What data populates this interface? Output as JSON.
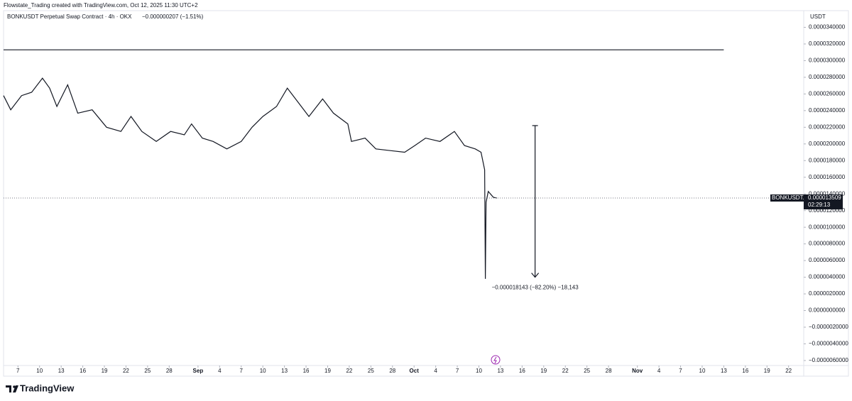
{
  "header": {
    "credit": "Flowstate_Trading created with TradingView.com, Oct 12, 2025 11:30 UTC+2"
  },
  "chart_data": {
    "type": "line",
    "title": "BONKUSDT Perpetual Swap Contract · 4h · OKX",
    "subtitle": "−0.000000207 (−1.51%)",
    "y_axis_label": "USDT",
    "xlim": [
      5,
      116.1
    ],
    "ylim": [
      -6.6e-06,
      3.6e-05
    ],
    "xticks": [
      7,
      10,
      13,
      16,
      19,
      22,
      25,
      28,
      {
        "value": 32,
        "label": "Sep"
      },
      {
        "value": 35,
        "label": "4"
      },
      {
        "value": 38,
        "label": "7"
      },
      {
        "value": 41,
        "label": "10"
      },
      {
        "value": 44,
        "label": "13"
      },
      {
        "value": 47,
        "label": "16"
      },
      {
        "value": 50,
        "label": "19"
      },
      {
        "value": 53,
        "label": "22"
      },
      {
        "value": 56,
        "label": "25"
      },
      {
        "value": 59,
        "label": "28"
      },
      {
        "value": 62,
        "label": "Oct"
      },
      {
        "value": 65,
        "label": "4"
      },
      {
        "value": 68,
        "label": "7"
      },
      {
        "value": 71,
        "label": "10"
      },
      {
        "value": 74,
        "label": "13"
      },
      {
        "value": 77,
        "label": "16"
      },
      {
        "value": 80,
        "label": "19"
      },
      {
        "value": 83,
        "label": "22"
      },
      {
        "value": 86,
        "label": "25"
      },
      {
        "value": 89,
        "label": "28"
      },
      {
        "value": 93,
        "label": "Nov"
      },
      {
        "value": 96,
        "label": "4"
      },
      {
        "value": 99,
        "label": "7"
      },
      {
        "value": 102,
        "label": "10"
      },
      {
        "value": 105,
        "label": "13"
      },
      {
        "value": 108,
        "label": "16"
      },
      {
        "value": 111,
        "label": "19"
      },
      {
        "value": 114,
        "label": "22"
      }
    ],
    "yticks": [
      {
        "value": 3.4e-05,
        "label": "0.0000340000"
      },
      {
        "value": 3.2e-05,
        "label": "0.0000320000"
      },
      {
        "value": 3e-05,
        "label": "0.0000300000"
      },
      {
        "value": 2.8e-05,
        "label": "0.0000280000"
      },
      {
        "value": 2.6e-05,
        "label": "0.0000260000"
      },
      {
        "value": 2.4e-05,
        "label": "0.0000240000"
      },
      {
        "value": 2.2e-05,
        "label": "0.0000220000"
      },
      {
        "value": 2e-05,
        "label": "0.0000200000"
      },
      {
        "value": 1.8e-05,
        "label": "0.0000180000"
      },
      {
        "value": 1.6e-05,
        "label": "0.0000160000"
      },
      {
        "value": 1.4e-05,
        "label": "0.0000140000"
      },
      {
        "value": 1.2e-05,
        "label": "0.0000120000"
      },
      {
        "value": 1e-05,
        "label": "0.0000100000"
      },
      {
        "value": 8e-06,
        "label": "0.0000080000"
      },
      {
        "value": 6e-06,
        "label": "0.0000060000"
      },
      {
        "value": 4e-06,
        "label": "0.0000040000"
      },
      {
        "value": 2e-06,
        "label": "0.0000020000"
      },
      {
        "value": 0,
        "label": "0.0000000000"
      },
      {
        "value": -2e-06,
        "label": "−0.0000020000"
      },
      {
        "value": -4e-06,
        "label": "−0.0000040000"
      },
      {
        "value": -6e-06,
        "label": "−0.0000060000"
      }
    ],
    "series": [
      {
        "name": "BONKUSDT.P",
        "color": "#131722",
        "x": [
          5.0,
          6.0,
          7.5,
          8.9,
          10.4,
          11.4,
          12.4,
          13.9,
          15.3,
          17.3,
          19.3,
          21.3,
          22.7,
          24.2,
          26.2,
          28.2,
          30.1,
          31.1,
          32.6,
          34.1,
          36.0,
          38.0,
          39.5,
          41.0,
          42.9,
          44.4,
          45.9,
          47.4,
          49.3,
          50.8,
          52.8,
          53.3,
          55.2,
          56.7,
          58.7,
          60.7,
          62.1,
          63.6,
          65.6,
          67.6,
          69.0,
          70.5,
          71.3,
          71.8,
          71.9,
          72.0,
          72.3,
          73.0,
          73.5
        ],
        "values": [
          2.58e-05,
          2.41e-05,
          2.58e-05,
          2.62e-05,
          2.79e-05,
          2.67e-05,
          2.45e-05,
          2.71e-05,
          2.37e-05,
          2.41e-05,
          2.2e-05,
          2.15e-05,
          2.33e-05,
          2.15e-05,
          2.03e-05,
          2.15e-05,
          2.11e-05,
          2.24e-05,
          2.07e-05,
          2.03e-05,
          1.94e-05,
          2.03e-05,
          2.2e-05,
          2.33e-05,
          2.45e-05,
          2.67e-05,
          2.5e-05,
          2.33e-05,
          2.54e-05,
          2.37e-05,
          2.24e-05,
          2.03e-05,
          2.07e-05,
          1.94e-05,
          1.92e-05,
          1.9e-05,
          1.98e-05,
          2.07e-05,
          2.03e-05,
          2.15e-05,
          1.98e-05,
          1.94e-05,
          1.9e-05,
          1.69e-05,
          3.8e-06,
          1.3e-05,
          1.43e-05,
          1.36e-05,
          1.35e-05
        ]
      },
      {
        "color": "#131722",
        "x": [
          5,
          105
        ],
        "values": [
          3.13e-05,
          3.13e-05
        ]
      }
    ],
    "last_price": {
      "symbol": "BONKUSDT.P",
      "value": 1.3509e-05,
      "countdown": "02:29:13"
    },
    "measure": {
      "x": 78.8,
      "from": 2.22e-05,
      "to": 4e-06,
      "label": "−0.000018143 (−82.20%) −18,143"
    }
  },
  "footer": {
    "logo": "TradingView"
  }
}
